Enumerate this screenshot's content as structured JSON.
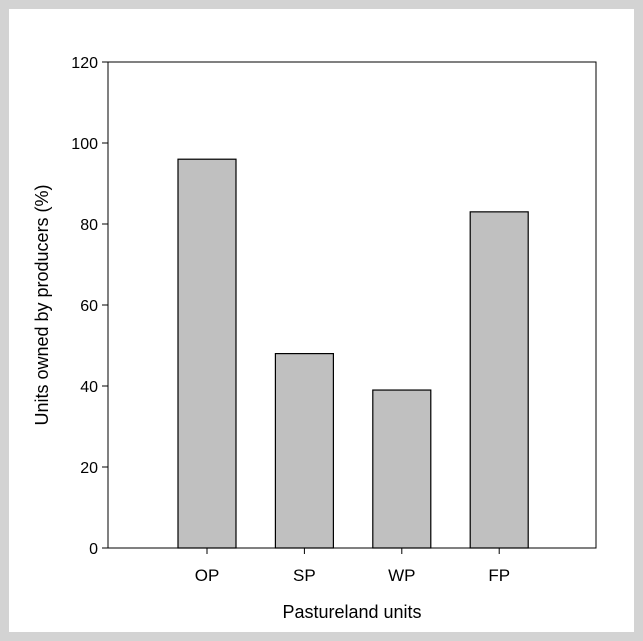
{
  "chart_data": {
    "type": "bar",
    "categories": [
      "OP",
      "SP",
      "WP",
      "FP"
    ],
    "values": [
      96,
      48,
      39,
      83
    ],
    "title": "",
    "xlabel": "Pastureland units",
    "ylabel": "Units owned by producers (%)",
    "ylim": [
      0,
      120
    ],
    "yticks": [
      0,
      20,
      40,
      60,
      80,
      100,
      120
    ],
    "grid": false,
    "legend": "none",
    "bar_color": "#c0c0c0",
    "bar_edge_color": "#000000"
  },
  "frame_color": "#d3d3d3"
}
